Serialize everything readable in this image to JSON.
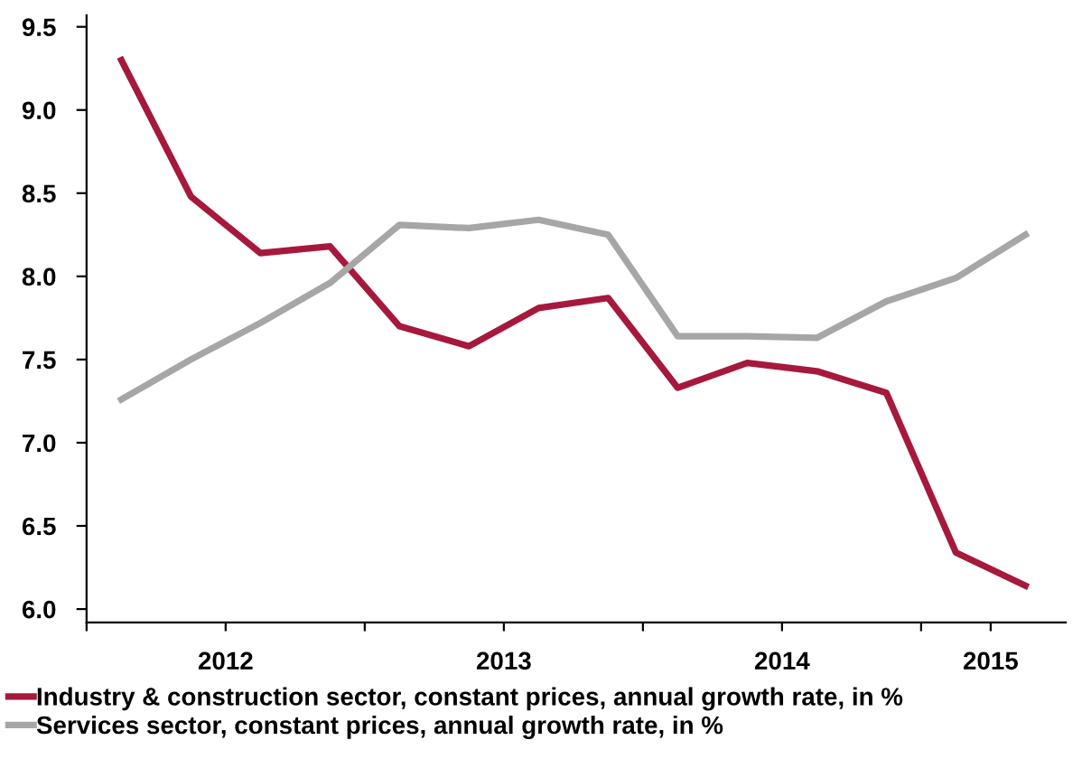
{
  "chart_data": {
    "type": "line",
    "x": [
      2012.125,
      2012.375,
      2012.625,
      2012.875,
      2013.125,
      2013.375,
      2013.625,
      2013.875,
      2014.125,
      2014.375,
      2014.625,
      2014.875,
      2015.125,
      2015.375
    ],
    "series": [
      {
        "name": "Industry & construction sector, constant prices, annual growth rate, in %",
        "color": "#a6193c",
        "values": [
          9.3,
          8.48,
          8.14,
          8.18,
          7.7,
          7.58,
          7.81,
          7.87,
          7.33,
          7.48,
          7.43,
          7.3,
          6.34,
          6.14
        ]
      },
      {
        "name": "Services sector, constant prices, annual growth rate, in %",
        "color": "#a6a6a6",
        "values": [
          7.26,
          7.5,
          7.72,
          7.96,
          8.31,
          8.29,
          8.34,
          8.25,
          7.64,
          7.64,
          7.63,
          7.85,
          7.99,
          8.25
        ]
      }
    ],
    "xlim": [
      2012,
      2015.52
    ],
    "xticks": [
      {
        "value": 2012,
        "label": null
      },
      {
        "value": 2012.5,
        "label": "2012"
      },
      {
        "value": 2013,
        "label": null
      },
      {
        "value": 2013.5,
        "label": "2013"
      },
      {
        "value": 2014,
        "label": null
      },
      {
        "value": 2014.5,
        "label": "2014"
      },
      {
        "value": 2015,
        "label": null
      },
      {
        "value": 2015.25,
        "label": "2015"
      }
    ],
    "ylim": [
      5.92,
      9.57
    ],
    "yticks": [
      {
        "value": 6,
        "label": "6.0"
      },
      6.5,
      {
        "value": 7,
        "label": "7.0"
      },
      7.5,
      {
        "value": 8,
        "label": "8.0"
      },
      8.5,
      {
        "value": 9,
        "label": "9.0"
      },
      9.5
    ],
    "grid": false,
    "legend": "bottom",
    "marker": "none",
    "line_style": "solid"
  }
}
